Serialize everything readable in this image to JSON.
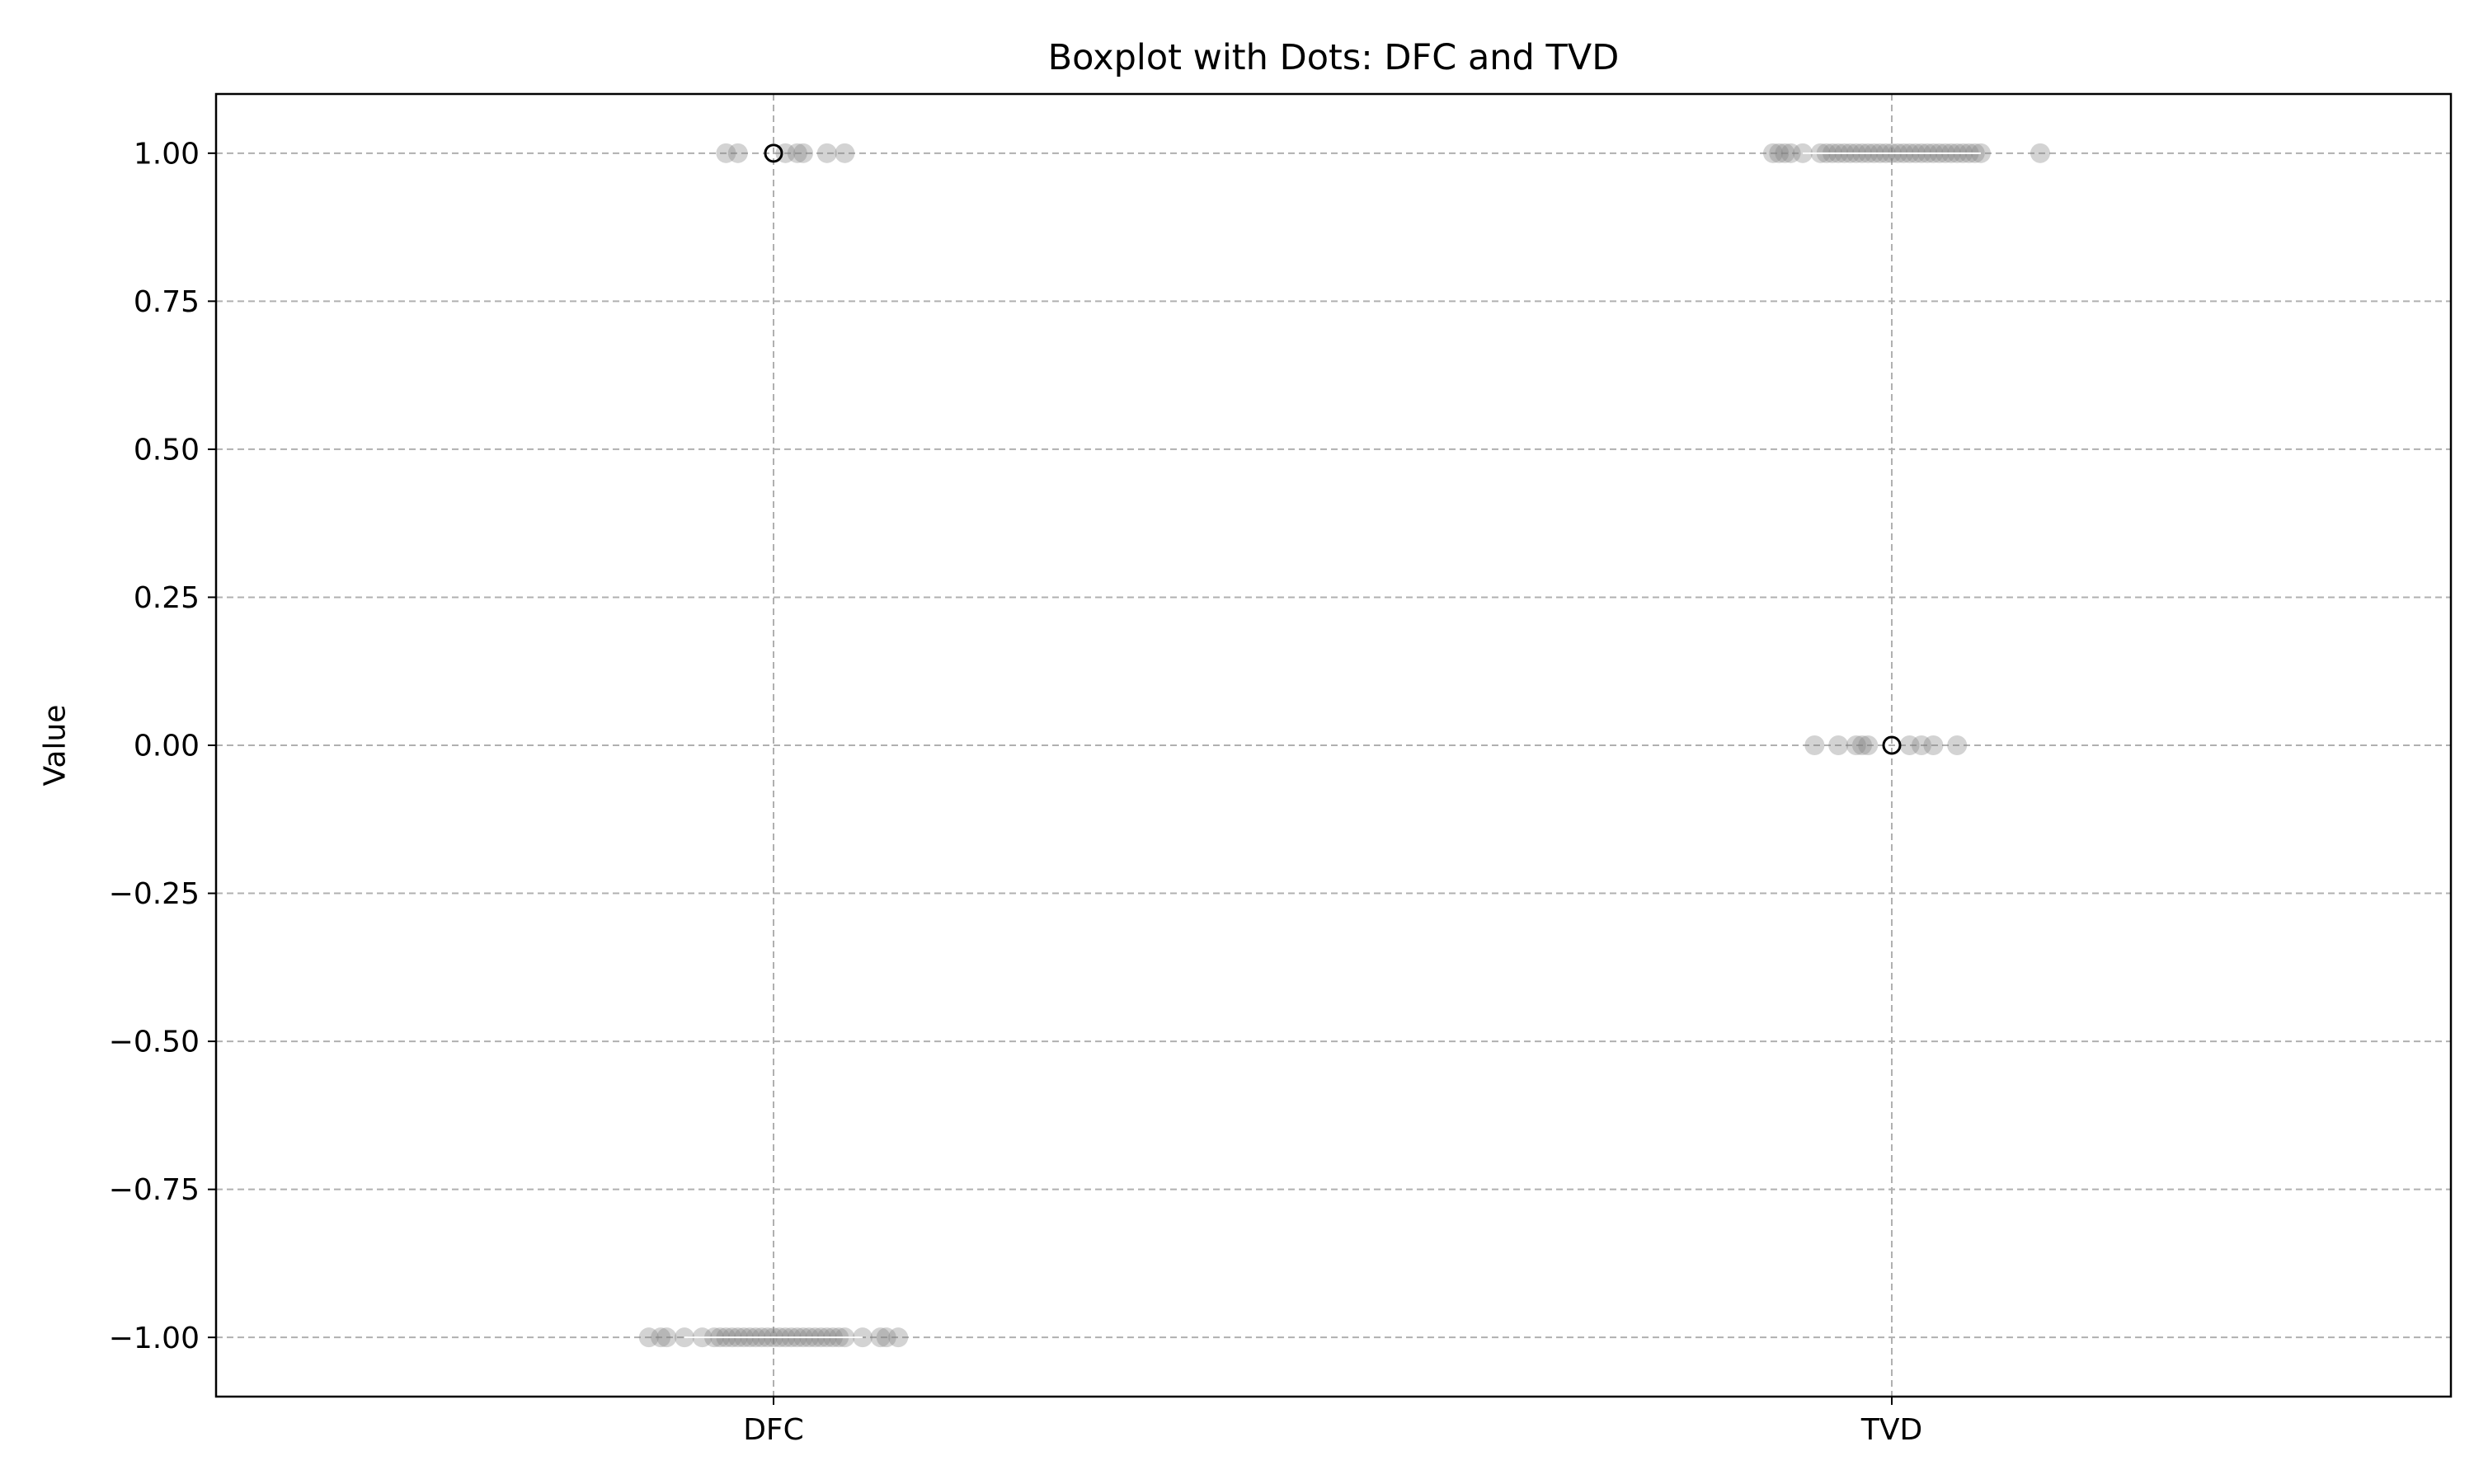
{
  "chart_data": {
    "type": "scatter",
    "title": "Boxplot with Dots: DFC and TVD",
    "xlabel": "",
    "ylabel": "Value",
    "categories": [
      "DFC",
      "TVD"
    ],
    "ylim": [
      -1.1,
      1.1
    ],
    "yticks": [
      1.0,
      0.75,
      0.5,
      0.25,
      0.0,
      -0.25,
      -0.5,
      -0.75,
      -1.0
    ],
    "ytick_labels": [
      "1.00",
      "0.75",
      "0.50",
      "0.25",
      "0.00",
      "−0.25",
      "−0.50",
      "−0.75",
      "−1.00"
    ],
    "grid": true,
    "grid_style": "dashed",
    "dot_color": "#808080",
    "outlier_marker": "open-circle",
    "series": [
      {
        "category": "DFC",
        "points": [
          {
            "x": -0.08,
            "y": 1
          },
          {
            "x": -0.06,
            "y": 1
          },
          {
            "x": 0.02,
            "y": 1
          },
          {
            "x": 0.04,
            "y": 1
          },
          {
            "x": 0.05,
            "y": 1
          },
          {
            "x": 0.09,
            "y": 1
          },
          {
            "x": 0.12,
            "y": 1
          },
          {
            "x": -0.21,
            "y": -1
          },
          {
            "x": -0.19,
            "y": -1
          },
          {
            "x": -0.18,
            "y": -1
          },
          {
            "x": -0.15,
            "y": -1
          },
          {
            "x": -0.12,
            "y": -1
          },
          {
            "x": -0.1,
            "y": -1
          },
          {
            "x": -0.09,
            "y": -1
          },
          {
            "x": -0.08,
            "y": -1
          },
          {
            "x": -0.07,
            "y": -1
          },
          {
            "x": -0.06,
            "y": -1
          },
          {
            "x": -0.05,
            "y": -1
          },
          {
            "x": -0.04,
            "y": -1
          },
          {
            "x": -0.03,
            "y": -1
          },
          {
            "x": -0.02,
            "y": -1
          },
          {
            "x": -0.01,
            "y": -1
          },
          {
            "x": 0.0,
            "y": -1
          },
          {
            "x": 0.01,
            "y": -1
          },
          {
            "x": 0.02,
            "y": -1
          },
          {
            "x": 0.03,
            "y": -1
          },
          {
            "x": 0.04,
            "y": -1
          },
          {
            "x": 0.05,
            "y": -1
          },
          {
            "x": 0.06,
            "y": -1
          },
          {
            "x": 0.07,
            "y": -1
          },
          {
            "x": 0.08,
            "y": -1
          },
          {
            "x": 0.09,
            "y": -1
          },
          {
            "x": 0.1,
            "y": -1
          },
          {
            "x": 0.11,
            "y": -1
          },
          {
            "x": 0.12,
            "y": -1
          },
          {
            "x": 0.15,
            "y": -1
          },
          {
            "x": 0.18,
            "y": -1
          },
          {
            "x": 0.19,
            "y": -1
          },
          {
            "x": 0.21,
            "y": -1
          }
        ],
        "box": {
          "median": -1,
          "q1": -1,
          "q3": -1,
          "whisker_low": -1,
          "whisker_high": -1
        },
        "outliers": [
          1
        ]
      },
      {
        "category": "TVD",
        "points": [
          {
            "x": -0.2,
            "y": 1
          },
          {
            "x": -0.19,
            "y": 1
          },
          {
            "x": -0.18,
            "y": 1
          },
          {
            "x": -0.17,
            "y": 1
          },
          {
            "x": -0.15,
            "y": 1
          },
          {
            "x": -0.12,
            "y": 1
          },
          {
            "x": -0.11,
            "y": 1
          },
          {
            "x": -0.1,
            "y": 1
          },
          {
            "x": -0.09,
            "y": 1
          },
          {
            "x": -0.08,
            "y": 1
          },
          {
            "x": -0.07,
            "y": 1
          },
          {
            "x": -0.06,
            "y": 1
          },
          {
            "x": -0.05,
            "y": 1
          },
          {
            "x": -0.04,
            "y": 1
          },
          {
            "x": -0.03,
            "y": 1
          },
          {
            "x": -0.02,
            "y": 1
          },
          {
            "x": -0.01,
            "y": 1
          },
          {
            "x": 0.0,
            "y": 1
          },
          {
            "x": 0.01,
            "y": 1
          },
          {
            "x": 0.02,
            "y": 1
          },
          {
            "x": 0.03,
            "y": 1
          },
          {
            "x": 0.04,
            "y": 1
          },
          {
            "x": 0.05,
            "y": 1
          },
          {
            "x": 0.06,
            "y": 1
          },
          {
            "x": 0.07,
            "y": 1
          },
          {
            "x": 0.08,
            "y": 1
          },
          {
            "x": 0.09,
            "y": 1
          },
          {
            "x": 0.1,
            "y": 1
          },
          {
            "x": 0.11,
            "y": 1
          },
          {
            "x": 0.12,
            "y": 1
          },
          {
            "x": 0.13,
            "y": 1
          },
          {
            "x": 0.14,
            "y": 1
          },
          {
            "x": 0.15,
            "y": 1
          },
          {
            "x": 0.25,
            "y": 1
          },
          {
            "x": -0.13,
            "y": 0
          },
          {
            "x": -0.09,
            "y": 0
          },
          {
            "x": -0.06,
            "y": 0
          },
          {
            "x": -0.05,
            "y": 0
          },
          {
            "x": -0.04,
            "y": 0
          },
          {
            "x": 0.03,
            "y": 0
          },
          {
            "x": 0.05,
            "y": 0
          },
          {
            "x": 0.07,
            "y": 0
          },
          {
            "x": 0.11,
            "y": 0
          }
        ],
        "box": {
          "median": 1,
          "q1": 1,
          "q3": 1,
          "whisker_low": 1,
          "whisker_high": 1
        },
        "outliers": [
          0
        ]
      }
    ]
  }
}
